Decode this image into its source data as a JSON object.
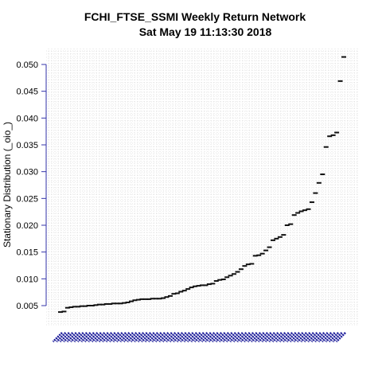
{
  "chart_data": {
    "type": "scatter",
    "title": "FCHI_FTSE_SSMI  Weekly Return Network",
    "subtitle": "Sat May 19 11:13:30 2018",
    "xlabel": "",
    "ylabel": "Stationary Distribution (_oio_)",
    "ylim": [
      0.0025,
      0.0525
    ],
    "yticks": [
      "0.005",
      "0.010",
      "0.015",
      "0.020",
      "0.025",
      "0.030",
      "0.035",
      "0.040",
      "0.045",
      "0.050"
    ],
    "grid": true,
    "axis_color": "#3333aa",
    "tick_label_color": "#1a1a99",
    "marker_color": "#111111",
    "values": [
      0.0038,
      0.0039,
      0.0046,
      0.0047,
      0.0048,
      0.0048,
      0.0049,
      0.0049,
      0.005,
      0.005,
      0.0051,
      0.0052,
      0.0052,
      0.0053,
      0.0053,
      0.0054,
      0.0054,
      0.0054,
      0.0055,
      0.0056,
      0.0058,
      0.006,
      0.0061,
      0.0062,
      0.0062,
      0.0062,
      0.0063,
      0.0063,
      0.0063,
      0.0064,
      0.0066,
      0.0068,
      0.0072,
      0.0073,
      0.0076,
      0.0078,
      0.0081,
      0.0084,
      0.0086,
      0.0087,
      0.0088,
      0.0088,
      0.009,
      0.0091,
      0.0096,
      0.0098,
      0.0099,
      0.0103,
      0.0106,
      0.0109,
      0.0113,
      0.0118,
      0.0124,
      0.0127,
      0.0128,
      0.0143,
      0.0144,
      0.0147,
      0.0153,
      0.0159,
      0.0172,
      0.0175,
      0.0178,
      0.0182,
      0.02,
      0.0202,
      0.0219,
      0.0223,
      0.0226,
      0.0228,
      0.023,
      0.0243,
      0.026,
      0.0279,
      0.0295,
      0.0346,
      0.0366,
      0.0368,
      0.0373,
      0.0469,
      0.0514
    ]
  }
}
